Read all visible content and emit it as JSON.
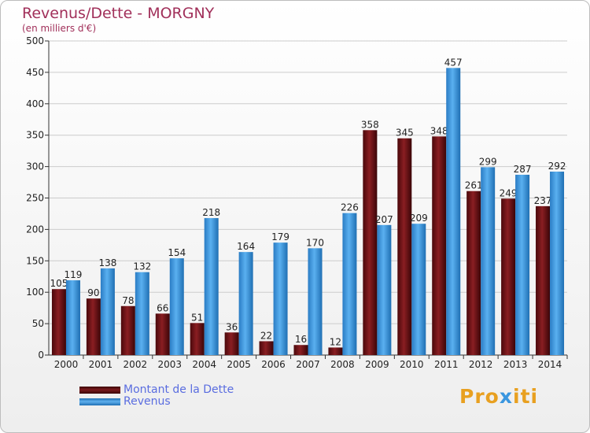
{
  "title": "Revenus/Dette - MORGNY",
  "subtitle": "(en milliers d'€)",
  "colors": {
    "dette": "#6b0f12",
    "revenus": "#3a96df",
    "axis": "#333333",
    "grid": "#cccccc",
    "title": "#a1305a",
    "legend_text": "#5a6de0"
  },
  "legend": [
    {
      "label": "Montant de la Dette",
      "color": "#6b0f12"
    },
    {
      "label": "Revenus",
      "color": "#3a96df"
    }
  ],
  "logo": {
    "text": "Proxiti"
  },
  "chart_data": {
    "type": "bar",
    "title": "Revenus/Dette - MORGNY",
    "subtitle": "(en milliers d'€)",
    "categories": [
      "2000",
      "2001",
      "2002",
      "2003",
      "2004",
      "2005",
      "2006",
      "2007",
      "2008",
      "2009",
      "2010",
      "2011",
      "2012",
      "2013",
      "2014"
    ],
    "series": [
      {
        "name": "Montant de la Dette",
        "values": [
          105,
          90,
          78,
          66,
          51,
          36,
          22,
          16,
          12,
          358,
          345,
          348,
          261,
          249,
          237
        ]
      },
      {
        "name": "Revenus",
        "values": [
          119,
          138,
          132,
          154,
          218,
          164,
          179,
          170,
          226,
          207,
          209,
          457,
          299,
          287,
          292
        ]
      }
    ],
    "yticks": [
      0,
      50,
      100,
      150,
      200,
      250,
      300,
      350,
      400,
      450,
      500
    ],
    "ylim": [
      0,
      500
    ],
    "grid": true,
    "legend_position": "bottom-left"
  }
}
